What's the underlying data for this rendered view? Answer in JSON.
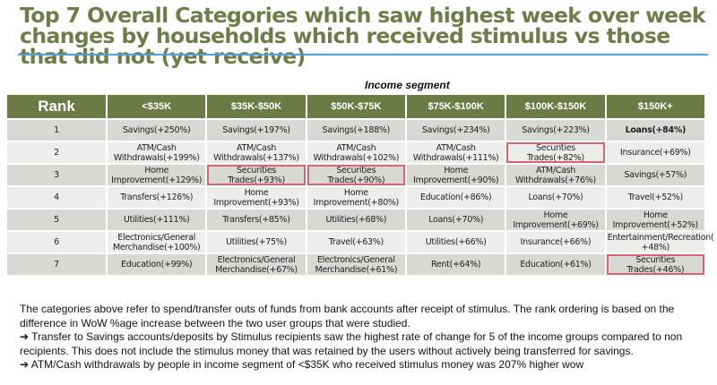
{
  "title": "Top 7 Overall Categories which saw highest week over week changes by households which received stimulus vs those that did not (yet receive)",
  "table": {
    "group_label": "Income segment",
    "rank_header": "Rank",
    "columns": [
      "<$35K",
      "$35K-$50K",
      "$50K-$75K",
      "$75K-$100K",
      "$100K-$150K",
      "$150K+"
    ],
    "rows": [
      {
        "rank": "1",
        "cells": [
          {
            "text": "Savings(+250%)"
          },
          {
            "text": "Savings(+197%)"
          },
          {
            "text": "Savings(+188%)"
          },
          {
            "text": "Savings(+234%)"
          },
          {
            "text": "Savings(+223%)"
          },
          {
            "text": "Loans(+84%)",
            "bold": true
          }
        ]
      },
      {
        "rank": "2",
        "cells": [
          {
            "text": "ATM/Cash\nWithdrawals(+199%)"
          },
          {
            "text": "ATM/Cash\nWithdrawals(+137%)"
          },
          {
            "text": "ATM/Cash\nWithdrawals(+102%)"
          },
          {
            "text": "ATM/Cash\nWithdrawals(+111%)"
          },
          {
            "text": "Securities Trades(+82%)",
            "highlight": true
          },
          {
            "text": "Insurance(+69%)"
          }
        ]
      },
      {
        "rank": "3",
        "cells": [
          {
            "text": "Home\nImprovement(+129%)"
          },
          {
            "text": "Securities Trades(+93%)",
            "highlight": true
          },
          {
            "text": "Securities Trades(+90%)",
            "highlight": true
          },
          {
            "text": "Home Improvement(+90%)"
          },
          {
            "text": "ATM/Cash\nWithdrawals(+76%)"
          },
          {
            "text": "Savings(+57%)"
          }
        ]
      },
      {
        "rank": "4",
        "cells": [
          {
            "text": "Transfers(+126%)"
          },
          {
            "text": "Home Improvement(+93%)"
          },
          {
            "text": "Home Improvement(+80%)"
          },
          {
            "text": "Education(+86%)"
          },
          {
            "text": "Loans(+70%)"
          },
          {
            "text": "Travel(+52%)"
          }
        ]
      },
      {
        "rank": "5",
        "cells": [
          {
            "text": "Utilities(+111%)"
          },
          {
            "text": "Transfers(+85%)"
          },
          {
            "text": "Utilities(+68%)"
          },
          {
            "text": "Loans(+70%)"
          },
          {
            "text": "Home Improvement(+69%)"
          },
          {
            "text": "Home Improvement(+52%)"
          }
        ]
      },
      {
        "rank": "6",
        "cells": [
          {
            "text": "Electronics/General\nMerchandise(+100%)"
          },
          {
            "text": "Utilities(+75%)"
          },
          {
            "text": "Travel(+63%)"
          },
          {
            "text": "Utilities(+66%)"
          },
          {
            "text": "Insurance(+66%)"
          },
          {
            "text": "Entertainment/Recreation(\n+48%)"
          }
        ]
      },
      {
        "rank": "7",
        "cells": [
          {
            "text": "Education(+99%)"
          },
          {
            "text": "Electronics/General\nMerchandise(+67%)"
          },
          {
            "text": "Electronics/General\nMerchandise(+61%)"
          },
          {
            "text": "Rent(+64%)"
          },
          {
            "text": "Education(+61%)"
          },
          {
            "text": "Securities Trades(+46%)",
            "highlight": true
          }
        ]
      }
    ]
  },
  "notes": [
    "The categories above refer to spend/transfer outs of funds from bank accounts after receipt of stimulus. The rank ordering is based on the difference in WoW %age increase between the two user groups that were studied.",
    "➔ Transfer to Savings accounts/deposits by Stimulus recipients saw the highest rate of change for 5 of the income groups compared to non recipients. This does not include the stimulus money that was retained by the users without actively being transferred for savings.",
    "➔ ATM/Cash withdrawals by people in income segment of <$35K who received stimulus money was 207% higher wow"
  ],
  "colors": {
    "header": "#6d7a45",
    "title": "#6e7c4a",
    "rule": "#4aa3d4",
    "highlight": "#d9646d"
  }
}
